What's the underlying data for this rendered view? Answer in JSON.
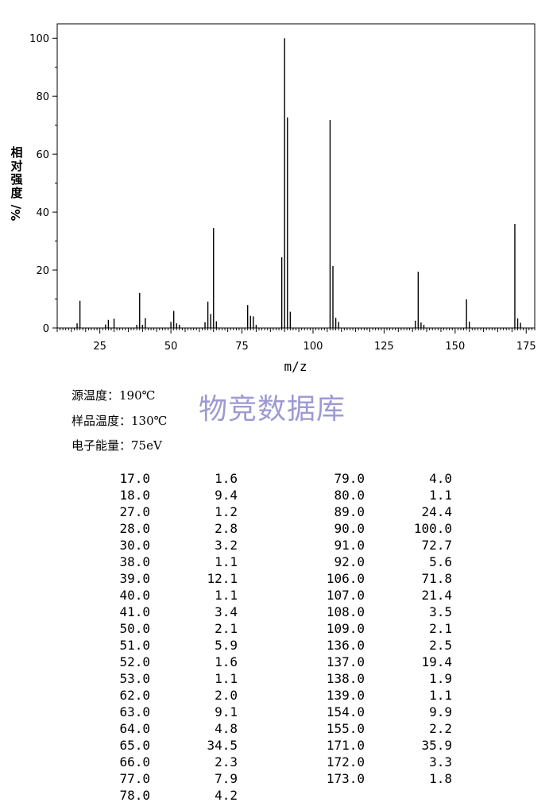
{
  "chart_data": {
    "type": "bar",
    "xlabel": "m/z",
    "ylabel": "相对强度%",
    "xlim": [
      10,
      178
    ],
    "ylim": [
      0,
      105
    ],
    "x_ticks": [
      25,
      50,
      75,
      100,
      125,
      150,
      175
    ],
    "y_ticks": [
      0,
      20,
      40,
      60,
      80,
      100
    ],
    "grid": false,
    "series": [
      {
        "x": [
          17,
          18,
          27,
          28,
          30,
          38,
          39,
          40,
          41,
          50,
          51,
          52,
          53,
          62,
          63,
          64,
          65,
          66,
          77,
          78,
          79,
          80,
          89,
          90,
          91,
          92,
          106,
          107,
          108,
          109,
          136,
          137,
          138,
          139,
          154,
          155,
          171,
          172,
          173
        ],
        "values": [
          1.6,
          9.4,
          1.2,
          2.8,
          3.2,
          1.1,
          12.1,
          1.1,
          3.4,
          2.1,
          5.9,
          1.6,
          1.1,
          2.0,
          9.1,
          4.8,
          34.5,
          2.3,
          7.9,
          4.2,
          4.0,
          1.1,
          24.4,
          100.0,
          72.7,
          5.6,
          71.8,
          21.4,
          3.5,
          2.1,
          2.5,
          19.4,
          1.9,
          1.1,
          9.9,
          2.2,
          35.9,
          3.3,
          1.8
        ]
      }
    ]
  },
  "conditions": [
    {
      "label": "源温度：190℃"
    },
    {
      "label": "样品温度：130℃"
    },
    {
      "label": "电子能量：75eV"
    }
  ],
  "watermark": "物竞数据库",
  "peak_table": {
    "left": [
      [
        "17.0",
        "1.6"
      ],
      [
        "18.0",
        "9.4"
      ],
      [
        "27.0",
        "1.2"
      ],
      [
        "28.0",
        "2.8"
      ],
      [
        "30.0",
        "3.2"
      ],
      [
        "38.0",
        "1.1"
      ],
      [
        "39.0",
        "12.1"
      ],
      [
        "40.0",
        "1.1"
      ],
      [
        "41.0",
        "3.4"
      ],
      [
        "50.0",
        "2.1"
      ],
      [
        "51.0",
        "5.9"
      ],
      [
        "52.0",
        "1.6"
      ],
      [
        "53.0",
        "1.1"
      ],
      [
        "62.0",
        "2.0"
      ],
      [
        "63.0",
        "9.1"
      ],
      [
        "64.0",
        "4.8"
      ],
      [
        "65.0",
        "34.5"
      ],
      [
        "66.0",
        "2.3"
      ],
      [
        "77.0",
        "7.9"
      ],
      [
        "78.0",
        "4.2"
      ]
    ],
    "right": [
      [
        "79.0",
        "4.0"
      ],
      [
        "80.0",
        "1.1"
      ],
      [
        "89.0",
        "24.4"
      ],
      [
        "90.0",
        "100.0"
      ],
      [
        "91.0",
        "72.7"
      ],
      [
        "92.0",
        "5.6"
      ],
      [
        "106.0",
        "71.8"
      ],
      [
        "107.0",
        "21.4"
      ],
      [
        "108.0",
        "3.5"
      ],
      [
        "109.0",
        "2.1"
      ],
      [
        "136.0",
        "2.5"
      ],
      [
        "137.0",
        "19.4"
      ],
      [
        "138.0",
        "1.9"
      ],
      [
        "139.0",
        "1.1"
      ],
      [
        "154.0",
        "9.9"
      ],
      [
        "155.0",
        "2.2"
      ],
      [
        "171.0",
        "35.9"
      ],
      [
        "172.0",
        "3.3"
      ],
      [
        "173.0",
        "1.8"
      ]
    ]
  }
}
